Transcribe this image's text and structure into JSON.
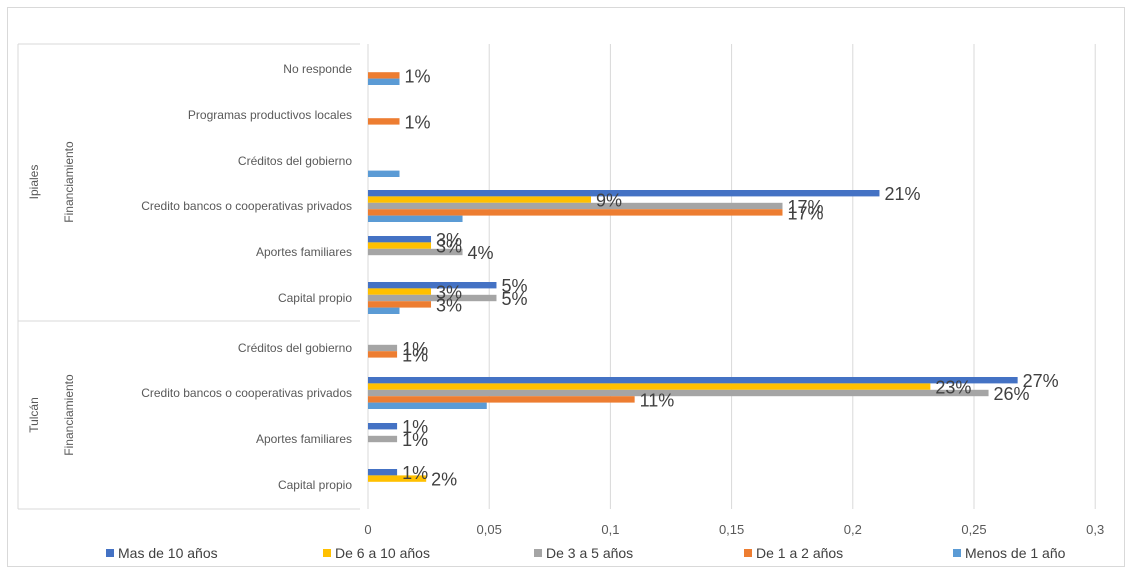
{
  "chart_data": {
    "type": "bar",
    "orientation": "horizontal",
    "title": "",
    "xlabel": "",
    "ylabel": "",
    "xlim": [
      0,
      0.3
    ],
    "x_ticks": [
      "0",
      "0,05",
      "0,1",
      "0,15",
      "0,2",
      "0,25",
      "0,3"
    ],
    "grid": true,
    "legend_position": "bottom",
    "groups": [
      {
        "outer": "Ipiales",
        "inner": "Financiamiento"
      },
      {
        "outer": "Tulcán",
        "inner": "Financiamiento"
      }
    ],
    "series": [
      {
        "name": "Mas de 10 años",
        "color": "#4472C4"
      },
      {
        "name": "De 6 a 10 años",
        "color": "#FFC000"
      },
      {
        "name": "De 3 a 5 años",
        "color": "#A5A5A5"
      },
      {
        "name": "De 1 a 2 años",
        "color": "#ED7D31"
      },
      {
        "name": "Menos de 1 año",
        "color": "#5B9BD5"
      }
    ],
    "categories": [
      {
        "group": "Ipiales",
        "label": "No responde",
        "values": [
          null,
          null,
          null,
          0.013,
          0.013
        ],
        "labels": [
          null,
          null,
          null,
          "1%",
          null
        ]
      },
      {
        "group": "Ipiales",
        "label": "Programas productivos locales",
        "values": [
          null,
          null,
          null,
          0.013,
          null
        ],
        "labels": [
          null,
          null,
          null,
          "1%",
          null
        ]
      },
      {
        "group": "Ipiales",
        "label": "Créditos del gobierno",
        "values": [
          null,
          null,
          null,
          null,
          0.013
        ],
        "labels": [
          null,
          null,
          null,
          null,
          null
        ]
      },
      {
        "group": "Ipiales",
        "label": "Credito bancos o cooperativas privados",
        "values": [
          0.211,
          0.092,
          0.171,
          0.171,
          0.039
        ],
        "labels": [
          "21%",
          "9%",
          "17%",
          "17%",
          null
        ]
      },
      {
        "group": "Ipiales",
        "label": "Aportes familiares",
        "values": [
          0.026,
          0.026,
          0.039,
          null,
          null
        ],
        "labels": [
          "3%",
          "3%",
          "4%",
          null,
          null
        ]
      },
      {
        "group": "Ipiales",
        "label": "Capital propio",
        "values": [
          0.053,
          0.026,
          0.053,
          0.026,
          0.013
        ],
        "labels": [
          "5%",
          "3%",
          "5%",
          "3%",
          null
        ]
      },
      {
        "group": "Tulcán",
        "label": "Créditos del gobierno",
        "values": [
          null,
          null,
          0.012,
          0.012,
          null
        ],
        "labels": [
          null,
          null,
          "1%",
          "1%",
          null
        ]
      },
      {
        "group": "Tulcán",
        "label": "Credito bancos o cooperativas privados",
        "values": [
          0.268,
          0.232,
          0.256,
          0.11,
          0.049
        ],
        "labels": [
          "27%",
          "23%",
          "26%",
          "11%",
          null
        ]
      },
      {
        "group": "Tulcán",
        "label": "Aportes familiares",
        "values": [
          0.012,
          null,
          0.012,
          null,
          null
        ],
        "labels": [
          "1%",
          null,
          "1%",
          null,
          null
        ]
      },
      {
        "group": "Tulcán",
        "label": "Capital propio",
        "values": [
          0.012,
          0.024,
          null,
          null,
          null
        ],
        "labels": [
          "1%",
          "2%",
          null,
          null,
          null
        ]
      }
    ]
  }
}
